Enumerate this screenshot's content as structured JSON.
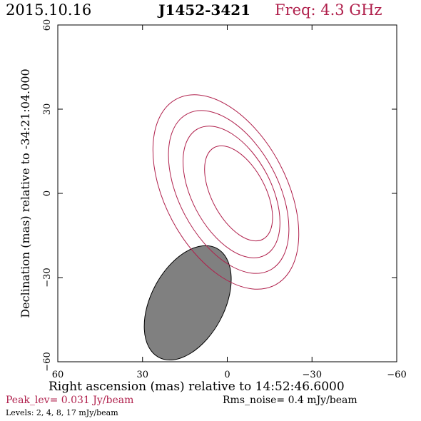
{
  "header": {
    "date": "2015.10.16",
    "source": "J1452-3421",
    "freq": "Freq: 4.3 GHz"
  },
  "colors": {
    "contour": "#b0204c",
    "freq_text": "#b0204c",
    "peak_text": "#b0204c",
    "beam_fill": "#808080"
  },
  "chart_data": {
    "type": "contour",
    "title": "J1452-3421",
    "xlabel": "Right ascension (mas) relative to 14:52:46.6000",
    "ylabel": "Declination (mas) relative to -34:21:04.000",
    "xlim": [
      60,
      -60
    ],
    "ylim": [
      -60,
      60
    ],
    "xticks": [
      60,
      30,
      0,
      -30,
      -60
    ],
    "yticks": [
      -60,
      -30,
      0,
      30,
      60
    ],
    "xtick_labels": [
      "60",
      "30",
      "0",
      "−30",
      "−60"
    ],
    "ytick_labels": [
      "−60",
      "−30",
      "0",
      "30",
      "60"
    ],
    "contour_levels_mjy": [
      2,
      4,
      8,
      17
    ],
    "contours": [
      {
        "level": 2,
        "center": [
          0.5,
          0.5
        ],
        "semi_major": 37.5,
        "semi_minor": 21.5,
        "pa_deg": -28
      },
      {
        "level": 4,
        "center": [
          -0.5,
          0.5
        ],
        "semi_major": 31.5,
        "semi_minor": 17.5,
        "pa_deg": -28
      },
      {
        "level": 8,
        "center": [
          -1.5,
          0.5
        ],
        "semi_major": 25.5,
        "semi_minor": 14.0,
        "pa_deg": -28
      },
      {
        "level": 17,
        "center": [
          -4.0,
          0.0
        ],
        "semi_major": 18.5,
        "semi_minor": 9.5,
        "pa_deg": -28
      }
    ],
    "beam": {
      "center": [
        14.0,
        -39.0
      ],
      "semi_major": 22.0,
      "semi_minor": 13.0,
      "pa_deg": 28
    }
  },
  "footer": {
    "peak": "Peak_lev=  0.031 Jy/beam",
    "rms": "Rms_noise=  0.4 mJy/beam",
    "levels": "Levels:  2,   4,   8,  17 mJy/beam"
  }
}
